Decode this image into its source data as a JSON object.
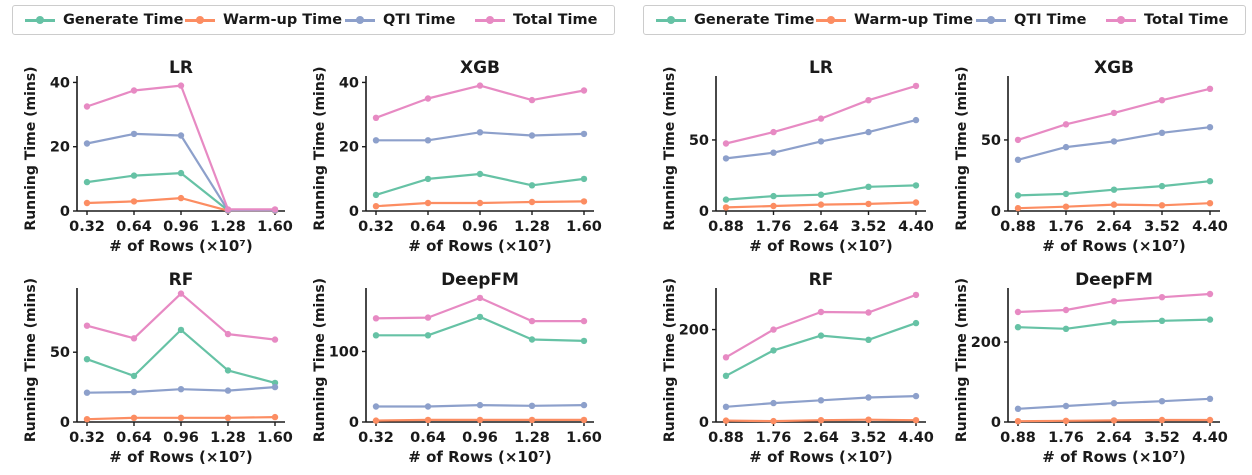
{
  "colors": {
    "generate": "#66c2a5",
    "warmup": "#fc8d62",
    "qti": "#8da0cb",
    "total": "#e78ac3"
  },
  "legend": [
    {
      "key": "generate",
      "label": "Generate Time"
    },
    {
      "key": "warmup",
      "label": "Warm-up Time"
    },
    {
      "key": "qti",
      "label": "QTI Time"
    },
    {
      "key": "total",
      "label": "Total Time"
    }
  ],
  "axis_text": {
    "xlabel": "# of Rows (×10⁷)",
    "ylabel": "Running Time (mins)"
  },
  "chart_data": [
    {
      "type": "line",
      "group": "left",
      "title": "LR",
      "categories": [
        "0.32",
        "0.64",
        "0.96",
        "1.28",
        "1.60"
      ],
      "ylim": [
        0,
        42
      ],
      "yticks": [
        0,
        20,
        40
      ],
      "xlabel": "# of Rows (×10⁷)",
      "ylabel": "Running Time (mins)",
      "series": [
        {
          "name": "Generate Time",
          "key": "generate",
          "values": [
            9,
            11,
            11.8,
            0.2,
            0.2
          ]
        },
        {
          "name": "Warm-up Time",
          "key": "warmup",
          "values": [
            2.5,
            3,
            4,
            0.1,
            0.1
          ]
        },
        {
          "name": "QTI Time",
          "key": "qti",
          "values": [
            21,
            24,
            23.5,
            0.2,
            0.2
          ]
        },
        {
          "name": "Total Time",
          "key": "total",
          "values": [
            32.5,
            37.5,
            39,
            0.5,
            0.5
          ]
        }
      ]
    },
    {
      "type": "line",
      "group": "left",
      "title": "XGB",
      "categories": [
        "0.32",
        "0.64",
        "0.96",
        "1.28",
        "1.60"
      ],
      "ylim": [
        0,
        42
      ],
      "yticks": [
        0,
        20,
        40
      ],
      "xlabel": "# of Rows (×10⁷)",
      "ylabel": "Running Time (mins)",
      "series": [
        {
          "name": "Generate Time",
          "key": "generate",
          "values": [
            5,
            10,
            11.5,
            8,
            10
          ]
        },
        {
          "name": "Warm-up Time",
          "key": "warmup",
          "values": [
            1.5,
            2.5,
            2.5,
            2.8,
            3
          ]
        },
        {
          "name": "QTI Time",
          "key": "qti",
          "values": [
            22,
            22,
            24.5,
            23.5,
            24
          ]
        },
        {
          "name": "Total Time",
          "key": "total",
          "values": [
            29,
            35,
            39,
            34.5,
            37.5
          ]
        }
      ]
    },
    {
      "type": "line",
      "group": "left",
      "title": "RF",
      "categories": [
        "0.32",
        "0.64",
        "0.96",
        "1.28",
        "1.60"
      ],
      "ylim": [
        0,
        96
      ],
      "yticks": [
        0,
        50
      ],
      "xlabel": "# of Rows (×10⁷)",
      "ylabel": "Running Time (mins)",
      "series": [
        {
          "name": "Generate Time",
          "key": "generate",
          "values": [
            45,
            33,
            66,
            37,
            28
          ]
        },
        {
          "name": "Warm-up Time",
          "key": "warmup",
          "values": [
            2,
            3,
            3,
            3,
            3.5
          ]
        },
        {
          "name": "QTI Time",
          "key": "qti",
          "values": [
            21,
            21.5,
            23.5,
            22.5,
            25
          ]
        },
        {
          "name": "Total Time",
          "key": "total",
          "values": [
            69,
            60,
            92,
            63,
            59
          ]
        }
      ]
    },
    {
      "type": "line",
      "group": "left",
      "title": "DeepFM",
      "categories": [
        "0.32",
        "0.64",
        "0.96",
        "1.28",
        "1.60"
      ],
      "ylim": [
        0,
        190
      ],
      "yticks": [
        0,
        100
      ],
      "xlabel": "# of Rows (×10⁷)",
      "ylabel": "Running Time (mins)",
      "series": [
        {
          "name": "Generate Time",
          "key": "generate",
          "values": [
            123,
            123,
            149,
            117,
            115
          ]
        },
        {
          "name": "Warm-up Time",
          "key": "warmup",
          "values": [
            2,
            3,
            3,
            3,
            3
          ]
        },
        {
          "name": "QTI Time",
          "key": "qti",
          "values": [
            22,
            22,
            24,
            23,
            24
          ]
        },
        {
          "name": "Total Time",
          "key": "total",
          "values": [
            147,
            148,
            176,
            143,
            143
          ]
        }
      ]
    },
    {
      "type": "line",
      "group": "right",
      "title": "LR",
      "categories": [
        "0.88",
        "1.76",
        "2.64",
        "3.52",
        "4.40"
      ],
      "ylim": [
        0,
        95
      ],
      "yticks": [
        0,
        50
      ],
      "xlabel": "# of Rows (×10⁷)",
      "ylabel": "Running Time (mins)",
      "series": [
        {
          "name": "Generate Time",
          "key": "generate",
          "values": [
            8,
            10.5,
            11.5,
            17,
            18
          ]
        },
        {
          "name": "Warm-up Time",
          "key": "warmup",
          "values": [
            2.5,
            3.5,
            4.5,
            5,
            6
          ]
        },
        {
          "name": "QTI Time",
          "key": "qti",
          "values": [
            37,
            41,
            49,
            55.5,
            64
          ]
        },
        {
          "name": "Total Time",
          "key": "total",
          "values": [
            47.5,
            55.5,
            65,
            78,
            88
          ]
        }
      ]
    },
    {
      "type": "line",
      "group": "right",
      "title": "XGB",
      "categories": [
        "0.88",
        "1.76",
        "2.64",
        "3.52",
        "4.40"
      ],
      "ylim": [
        0,
        95
      ],
      "yticks": [
        0,
        50
      ],
      "xlabel": "# of Rows (×10⁷)",
      "ylabel": "Running Time (mins)",
      "series": [
        {
          "name": "Generate Time",
          "key": "generate",
          "values": [
            11,
            12,
            15,
            17.5,
            21
          ]
        },
        {
          "name": "Warm-up Time",
          "key": "warmup",
          "values": [
            2,
            3,
            4.5,
            4,
            5.5
          ]
        },
        {
          "name": "QTI Time",
          "key": "qti",
          "values": [
            36,
            45,
            49,
            55,
            59
          ]
        },
        {
          "name": "Total Time",
          "key": "total",
          "values": [
            50,
            61,
            69,
            78,
            86
          ]
        }
      ]
    },
    {
      "type": "line",
      "group": "right",
      "title": "RF",
      "categories": [
        "0.88",
        "1.76",
        "2.64",
        "3.52",
        "4.40"
      ],
      "ylim": [
        0,
        290
      ],
      "yticks": [
        0,
        200
      ],
      "xlabel": "# of Rows (×10⁷)",
      "ylabel": "Running Time (mins)",
      "series": [
        {
          "name": "Generate Time",
          "key": "generate",
          "values": [
            100,
            155,
            187,
            178,
            214
          ]
        },
        {
          "name": "Warm-up Time",
          "key": "warmup",
          "values": [
            3,
            2,
            4,
            5,
            4
          ]
        },
        {
          "name": "QTI Time",
          "key": "qti",
          "values": [
            33,
            41,
            47,
            53,
            56
          ]
        },
        {
          "name": "Total Time",
          "key": "total",
          "values": [
            140,
            200,
            238,
            237,
            275
          ]
        }
      ]
    },
    {
      "type": "line",
      "group": "right",
      "title": "DeepFM",
      "categories": [
        "0.88",
        "1.76",
        "2.64",
        "3.52",
        "4.40"
      ],
      "ylim": [
        0,
        335
      ],
      "yticks": [
        0,
        200
      ],
      "xlabel": "# of Rows (×10⁷)",
      "ylabel": "Running Time (mins)",
      "series": [
        {
          "name": "Generate Time",
          "key": "generate",
          "values": [
            237,
            233,
            249,
            253,
            256
          ]
        },
        {
          "name": "Warm-up Time",
          "key": "warmup",
          "values": [
            2,
            3,
            4,
            5,
            5
          ]
        },
        {
          "name": "QTI Time",
          "key": "qti",
          "values": [
            33,
            40,
            47,
            52,
            58
          ]
        },
        {
          "name": "Total Time",
          "key": "total",
          "values": [
            275,
            280,
            302,
            312,
            320
          ]
        }
      ]
    }
  ]
}
